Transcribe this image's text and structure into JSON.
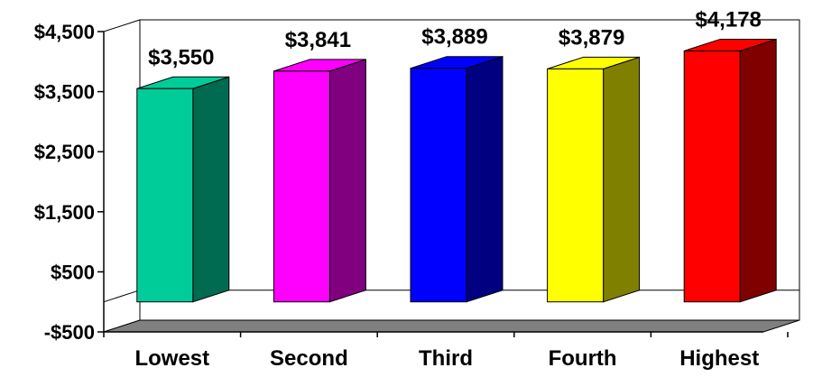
{
  "chart_data": {
    "type": "bar",
    "style": "3d",
    "title": "",
    "xlabel": "",
    "ylabel": "",
    "ylim": [
      -500,
      4500
    ],
    "y_ticks": [
      4500,
      3500,
      2500,
      1500,
      500,
      -500
    ],
    "y_tick_labels": [
      "$4,500",
      "$3,500",
      "$2,500",
      "$1,500",
      "$500",
      "-$500"
    ],
    "categories": [
      "Lowest",
      "Second",
      "Third",
      "Fourth",
      "Highest"
    ],
    "values": [
      3550,
      3841,
      3889,
      3879,
      4178
    ],
    "value_labels": [
      "$3,550",
      "$3,841",
      "$3,889",
      "$3,879",
      "$4,178"
    ],
    "colors": {
      "front": [
        "#00CC99",
        "#FF00FF",
        "#0000FF",
        "#FFFF00",
        "#FF0000"
      ],
      "side": [
        "#006B50",
        "#800080",
        "#000080",
        "#808000",
        "#800000"
      ],
      "floor": "#808080",
      "wall": "#FFFFFF",
      "axis": "#000000"
    },
    "grid": false,
    "legend": "none"
  }
}
